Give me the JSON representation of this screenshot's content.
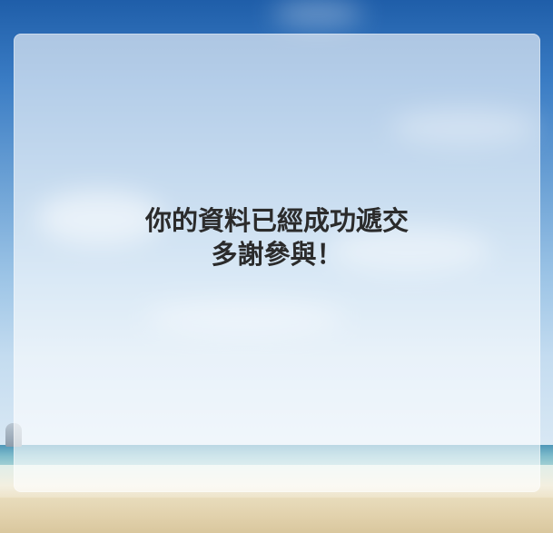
{
  "confirmation": {
    "line1": "你的資料已經成功遞交",
    "line2": "多謝參與！"
  },
  "colors": {
    "text": "#2b2b2b",
    "card_overlay": "rgba(255,255,255,0.62)",
    "sky_top": "#1f5ea9",
    "sky_bottom": "#d9e8f4",
    "sand": "#e2d2ad"
  }
}
